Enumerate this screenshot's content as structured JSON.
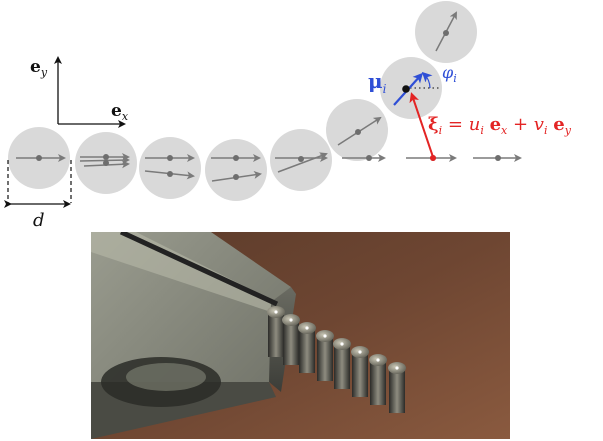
{
  "colors": {
    "disk": "#d9d9d9",
    "arrow": "#7a7a7a",
    "center_dot": "#6e6e6e",
    "black": "#111111",
    "red": "#e32424",
    "blue": "#2f4fd6"
  },
  "labels": {
    "ey_bold": "e",
    "ey_sub": "y",
    "ex_bold": "e",
    "ex_sub": "x",
    "d": "d",
    "mu": "μ",
    "mu_sub": "i",
    "phi": "φ",
    "phi_sub": "i",
    "xi": "ξ",
    "xi_sub": "i",
    "eq_mid": " = ",
    "u": "u",
    "u_sub": "i",
    "e1": "e",
    "e1_sub": "x",
    "plus": " + ",
    "v": "v",
    "v_sub": "i",
    "e2": "e",
    "e2_sub": "y"
  },
  "photo": {
    "description_icon": "magnetic-spheres-photo",
    "sphere_count": 8
  }
}
